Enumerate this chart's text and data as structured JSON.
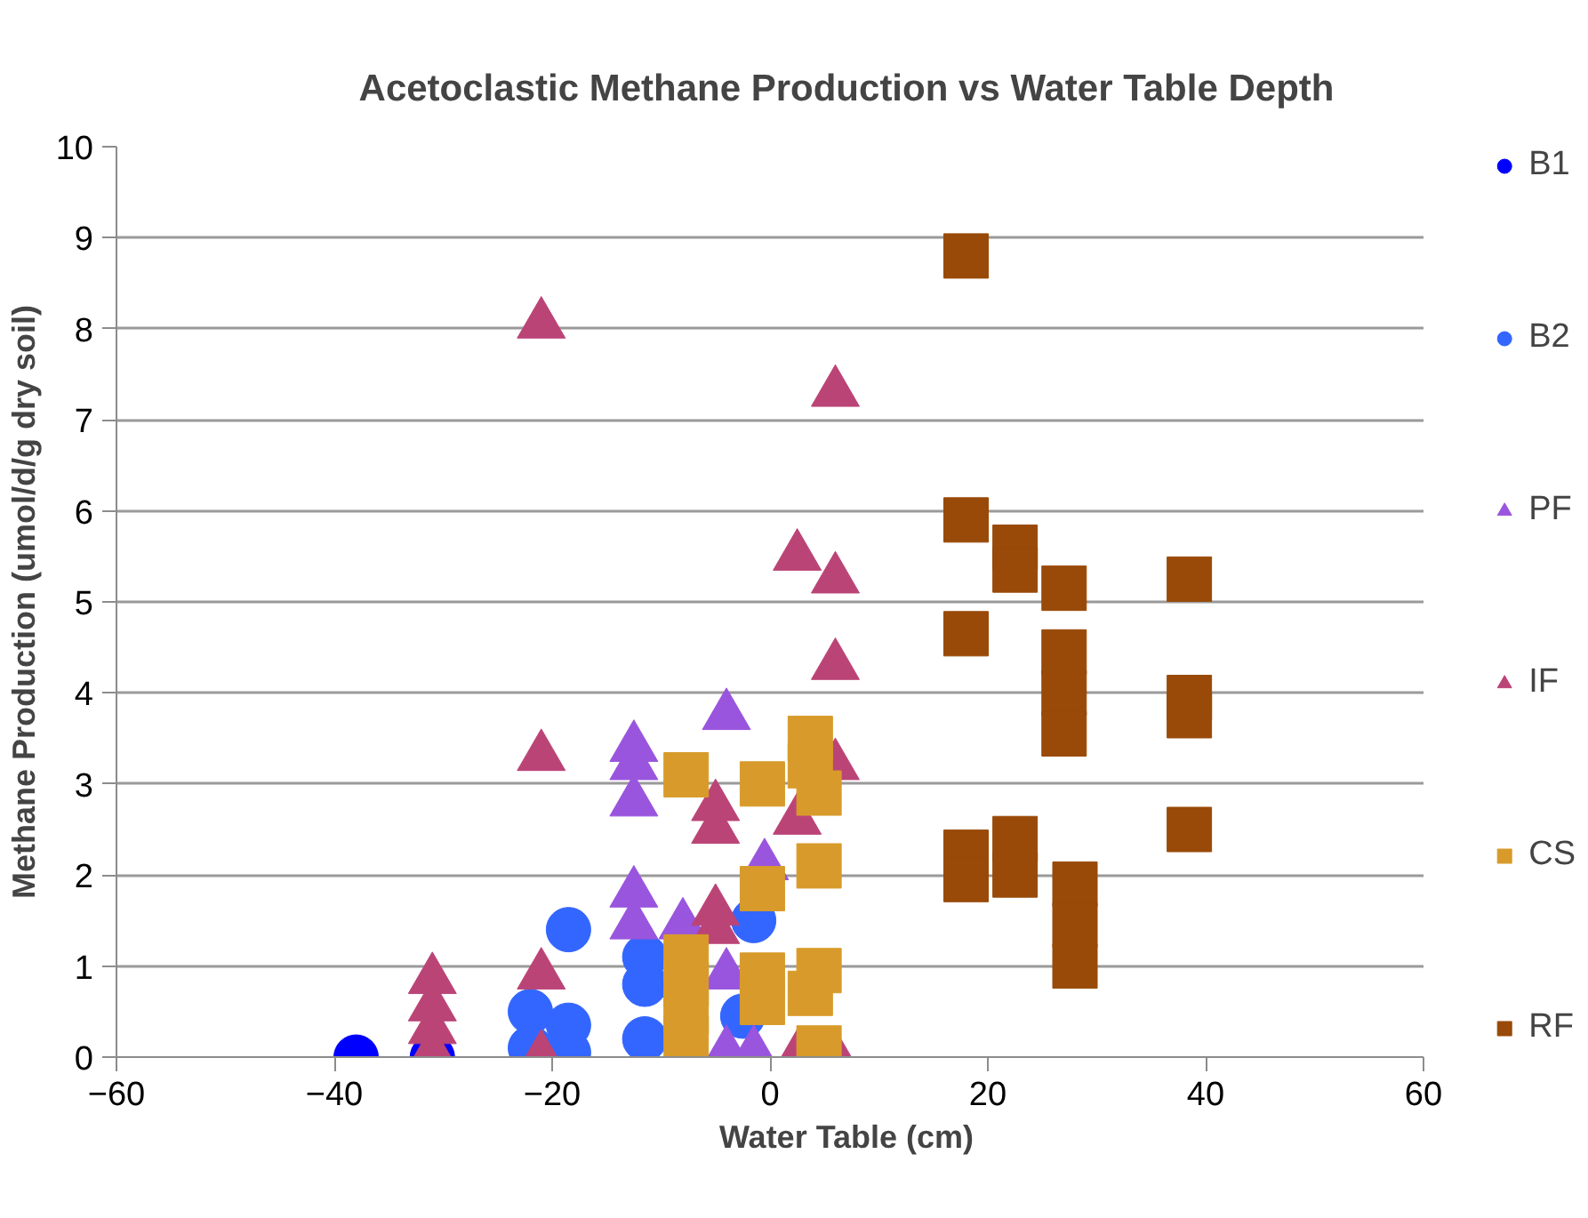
{
  "chart_data": {
    "type": "scatter",
    "title": "Acetoclastic Methane Production vs Water Table Depth",
    "xlabel": "Water Table (cm)",
    "ylabel": "Methane Production (umol/d/g dry soil)",
    "xlim": [
      -60,
      60
    ],
    "ylim": [
      0,
      10
    ],
    "xticks": [
      -60,
      -40,
      -20,
      0,
      20,
      40,
      60
    ],
    "yticks": [
      0,
      1,
      2,
      3,
      4,
      5,
      6,
      7,
      8,
      9,
      10
    ],
    "grid": "y",
    "legend": "right",
    "series": [
      {
        "name": "B1",
        "color": "#0000ff",
        "marker": "circle",
        "x": [
          -38,
          -31
        ],
        "values": [
          0,
          0
        ]
      },
      {
        "name": "B2",
        "color": "#3366ff",
        "marker": "circle",
        "x": [
          -22,
          -22,
          -18.5,
          -18.5,
          -18.5,
          -11.5,
          -11.5,
          -11.5,
          -1.5,
          -2.5
        ],
        "values": [
          0.5,
          0.1,
          1.4,
          0.35,
          0.05,
          1.1,
          0.8,
          0.2,
          1.5,
          0.45
        ]
      },
      {
        "name": "PF",
        "color": "#9955dd",
        "marker": "triangle",
        "x": [
          -12.5,
          -12.5,
          -12.5,
          -4,
          -12.5,
          -12.5,
          -8,
          -0.5,
          -4,
          -4,
          -1.5
        ],
        "values": [
          3.4,
          3.2,
          2.8,
          3.75,
          1.8,
          1.45,
          1.45,
          2.1,
          0.9,
          0.05,
          0.05
        ]
      },
      {
        "name": "IF",
        "color": "#bb4477",
        "marker": "triangle",
        "x": [
          -21,
          -21,
          -21,
          -21,
          -31,
          -31,
          -31,
          -31,
          6,
          2.5,
          6,
          6,
          6,
          -5,
          -5,
          2.5,
          -5,
          -5,
          2.5,
          6
        ],
        "values": [
          8.05,
          3.3,
          0.9,
          0,
          0.85,
          0.55,
          0.3,
          0.05,
          7.3,
          5.5,
          5.25,
          4.3,
          3.2,
          2.75,
          2.5,
          2.6,
          1.6,
          1.4,
          0,
          0
        ]
      },
      {
        "name": "CS",
        "color": "#d89b2b",
        "marker": "square",
        "x": [
          -7.7,
          -7.7,
          -7.7,
          -7.7,
          -7.7,
          -0.7,
          -0.7,
          -0.7,
          -0.7,
          3.7,
          3.7,
          4.5,
          4.5,
          4.5,
          3.7,
          4.5
        ],
        "values": [
          3.1,
          1.1,
          0.8,
          0.5,
          0.2,
          3.0,
          1.85,
          0.9,
          0.6,
          3.5,
          3.2,
          2.9,
          2.1,
          0.95,
          0.7,
          0.1
        ]
      },
      {
        "name": "RF",
        "color": "#994a08",
        "marker": "square",
        "x": [
          18,
          18,
          18,
          18,
          18,
          22.5,
          22.5,
          22.5,
          22.5,
          27,
          27,
          27,
          27,
          28,
          28,
          28,
          38.5,
          38.5,
          38.5,
          38.5
        ],
        "values": [
          8.8,
          5.9,
          4.65,
          2.25,
          1.95,
          5.6,
          5.35,
          2.4,
          2.0,
          5.15,
          4.45,
          4.0,
          3.55,
          1.9,
          1.45,
          1.0,
          5.25,
          3.95,
          3.75,
          2.5
        ]
      }
    ]
  }
}
